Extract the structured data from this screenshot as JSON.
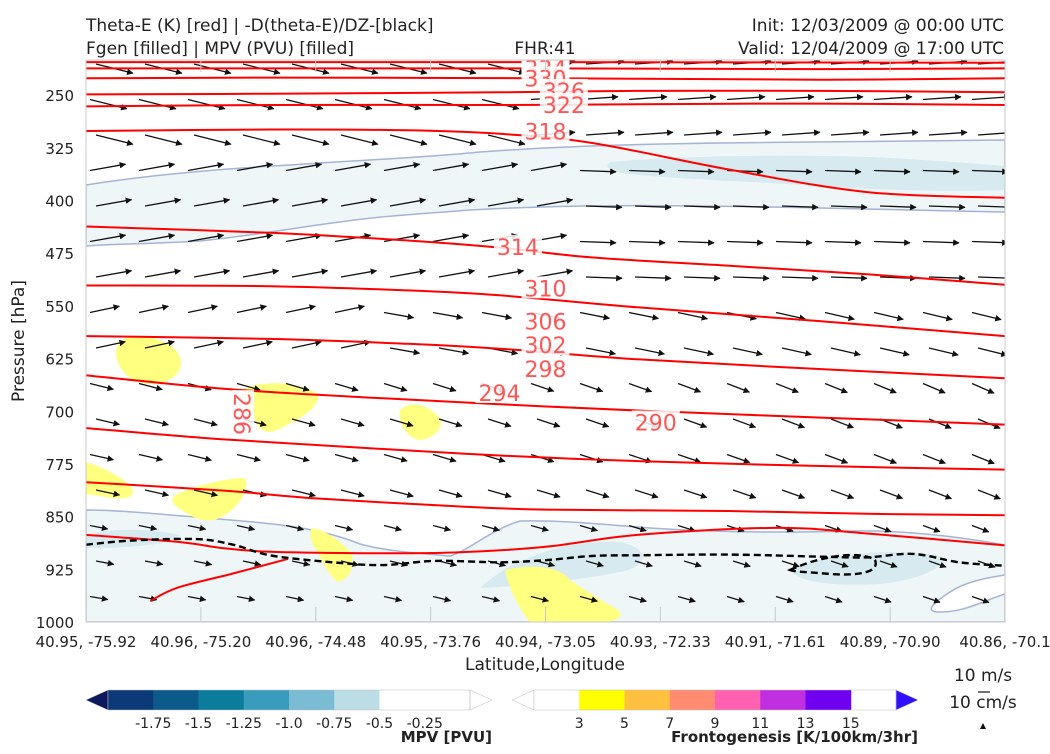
{
  "header": {
    "line1_left": "Theta-E (K) [red] | -D(theta-E)/DZ-[black]",
    "line2_left": "Fgen [filled] | MPV (PVU) [filled]",
    "line2_center": "FHR:41",
    "line1_right": "Init: 12/03/2009 @ 00:00 UTC",
    "line2_right": "Valid: 12/04/2009 @ 17:00 UTC"
  },
  "wind_key": {
    "horizontal_label": "10 m/s",
    "vertical_label": "10 cm/s"
  },
  "colors": {
    "theta_e": "#ff0000",
    "theta_e_label": "#ff5555",
    "stability": "#000000",
    "mpv_line": "#a4b4d4",
    "mpv_fill_light": "#eef6f8",
    "mpv_fill_medium": "#d6eaf0",
    "fgen_fill": "#ffff80"
  },
  "chart_data": {
    "type": "cross-section",
    "xlabel": "Latitude,Longitude",
    "ylabel": "Pressure [hPa]",
    "y_scale": "linear, inverted",
    "ylim": [
      1000,
      200
    ],
    "x_ticks": [
      "40.95, -75.92",
      "40.96, -75.20",
      "40.96, -74.48",
      "40.95, -73.76",
      "40.94, -73.05",
      "40.93, -72.33",
      "40.91, -71.61",
      "40.89, -70.90",
      "40.86, -70.1"
    ],
    "y_ticks": [
      250,
      325,
      400,
      475,
      550,
      625,
      700,
      775,
      850,
      925,
      1000
    ],
    "theta_e_contours": [
      {
        "label": "338",
        "label_x": 0.5,
        "label_p": 205,
        "values": [
          [
            0,
            203
          ],
          [
            0.2,
            203
          ],
          [
            0.5,
            203
          ],
          [
            1,
            204
          ]
        ]
      },
      {
        "label": "334",
        "label_x": 0.5,
        "label_p": 212,
        "values": [
          [
            0,
            212
          ],
          [
            0.3,
            212
          ],
          [
            0.5,
            212
          ],
          [
            0.8,
            213
          ],
          [
            1,
            212
          ]
        ]
      },
      {
        "label": "330",
        "label_x": 0.5,
        "label_p": 226,
        "values": [
          [
            0,
            226
          ],
          [
            0.2,
            225
          ],
          [
            0.5,
            226
          ],
          [
            0.8,
            228
          ],
          [
            1,
            226
          ]
        ]
      },
      {
        "label": "326",
        "label_x": 0.52,
        "label_p": 244,
        "values": [
          [
            0,
            249
          ],
          [
            0.2,
            248
          ],
          [
            0.45,
            246
          ],
          [
            0.6,
            244
          ],
          [
            0.8,
            244
          ],
          [
            1,
            246
          ]
        ]
      },
      {
        "label": "322",
        "label_x": 0.52,
        "label_p": 264,
        "values": [
          [
            0,
            266
          ],
          [
            0.2,
            264
          ],
          [
            0.45,
            264
          ],
          [
            0.6,
            263
          ],
          [
            0.8,
            262
          ],
          [
            1,
            264
          ]
        ]
      },
      {
        "label": "318",
        "label_x": 0.5,
        "label_p": 302,
        "values": [
          [
            0,
            301
          ],
          [
            0.2,
            299
          ],
          [
            0.35,
            300
          ],
          [
            0.45,
            305
          ],
          [
            0.55,
            318
          ],
          [
            0.7,
            356
          ],
          [
            0.85,
            388
          ],
          [
            1,
            396
          ]
        ]
      },
      {
        "label": "314",
        "label_x": 0.47,
        "label_p": 466,
        "values": [
          [
            0,
            437
          ],
          [
            0.2,
            446
          ],
          [
            0.35,
            457
          ],
          [
            0.45,
            467
          ],
          [
            0.55,
            481
          ],
          [
            0.7,
            493
          ],
          [
            0.85,
            505
          ],
          [
            1,
            520
          ]
        ]
      },
      {
        "label": "310",
        "label_x": 0.5,
        "label_p": 525,
        "values": [
          [
            0,
            521
          ],
          [
            0.2,
            522
          ],
          [
            0.35,
            528
          ],
          [
            0.45,
            535
          ],
          [
            0.6,
            552
          ],
          [
            0.8,
            572
          ],
          [
            1,
            593
          ]
        ]
      },
      {
        "label": "306",
        "label_x": 0.5,
        "label_p": 572,
        "values": [
          [
            0,
            593
          ],
          [
            0.2,
            597
          ],
          [
            0.35,
            604
          ],
          [
            0.45,
            611
          ],
          [
            0.6,
            626
          ],
          [
            0.8,
            640
          ],
          [
            1,
            653
          ]
        ]
      },
      {
        "label": "302",
        "label_x": 0.5,
        "label_p": 606,
        "values": [
          [
            0,
            649
          ],
          [
            0.15,
            668
          ],
          [
            0.3,
            680
          ],
          [
            0.45,
            690
          ],
          [
            0.6,
            699
          ],
          [
            0.8,
            709
          ],
          [
            1,
            719
          ]
        ]
      },
      {
        "label": "298",
        "label_x": 0.5,
        "label_p": 640,
        "values": [
          [
            0,
            724
          ],
          [
            0.15,
            740
          ],
          [
            0.3,
            752
          ],
          [
            0.45,
            763
          ],
          [
            0.6,
            771
          ],
          [
            0.8,
            778
          ],
          [
            1,
            783
          ]
        ]
      },
      {
        "label": "294",
        "label_x": 0.45,
        "label_p": 674,
        "values": [
          [
            0,
            801
          ],
          [
            0.15,
            813
          ],
          [
            0.25,
            824
          ],
          [
            0.4,
            835
          ],
          [
            0.5,
            840
          ],
          [
            0.7,
            842
          ],
          [
            0.85,
            846
          ],
          [
            1,
            848
          ]
        ]
      },
      {
        "label": "290",
        "label_x": 0.62,
        "label_p": 716,
        "values": [
          [
            0,
            876
          ],
          [
            0.1,
            886
          ],
          [
            0.15,
            895
          ],
          [
            0.2,
            900
          ],
          [
            0.3,
            902
          ],
          [
            0.4,
            901
          ],
          [
            0.5,
            893
          ],
          [
            0.6,
            876
          ],
          [
            0.75,
            866
          ],
          [
            0.85,
            874
          ],
          [
            1,
            891
          ]
        ]
      },
      {
        "label": "286",
        "label_x": 0.17,
        "label_p": 704,
        "values": [
          [
            0.07,
            970
          ],
          [
            0.1,
            951
          ],
          [
            0.16,
            931
          ],
          [
            0.22,
            910
          ]
        ]
      }
    ],
    "stability_contour": {
      "color": "#000000",
      "style": "dashed",
      "values": [
        [
          0,
          890
        ],
        [
          0.05,
          884
        ],
        [
          0.12,
          882
        ],
        [
          0.16,
          890
        ],
        [
          0.2,
          905
        ],
        [
          0.26,
          914
        ],
        [
          0.32,
          919
        ],
        [
          0.38,
          913
        ],
        [
          0.45,
          915
        ],
        [
          0.5,
          912
        ],
        [
          0.55,
          906
        ],
        [
          0.6,
          905
        ],
        [
          0.7,
          904
        ],
        [
          0.8,
          907
        ],
        [
          0.85,
          908
        ],
        [
          0.9,
          903
        ],
        [
          0.95,
          915
        ],
        [
          1,
          920
        ]
      ]
    },
    "fgen_scale": {
      "label": "Frontogenesis [K/100km/3hr]",
      "ticks": [
        3,
        5,
        7,
        9,
        11,
        13,
        15
      ],
      "colors": [
        "#ffff00",
        "#ffc040",
        "#ff8c70",
        "#ff60b0",
        "#c030e0",
        "#7000f0",
        "#3010ff"
      ]
    },
    "mpv_scale": {
      "label": "MPV [PVU]",
      "ticks": [
        -1.75,
        -1.5,
        -1.25,
        -1.0,
        -0.75,
        -0.5,
        -0.25
      ],
      "colors": [
        "#0c1a5c",
        "#0c3a78",
        "#0c5a8c",
        "#0c7c9c",
        "#3a9cbc",
        "#7abcd4",
        "#bcdce6"
      ]
    }
  }
}
